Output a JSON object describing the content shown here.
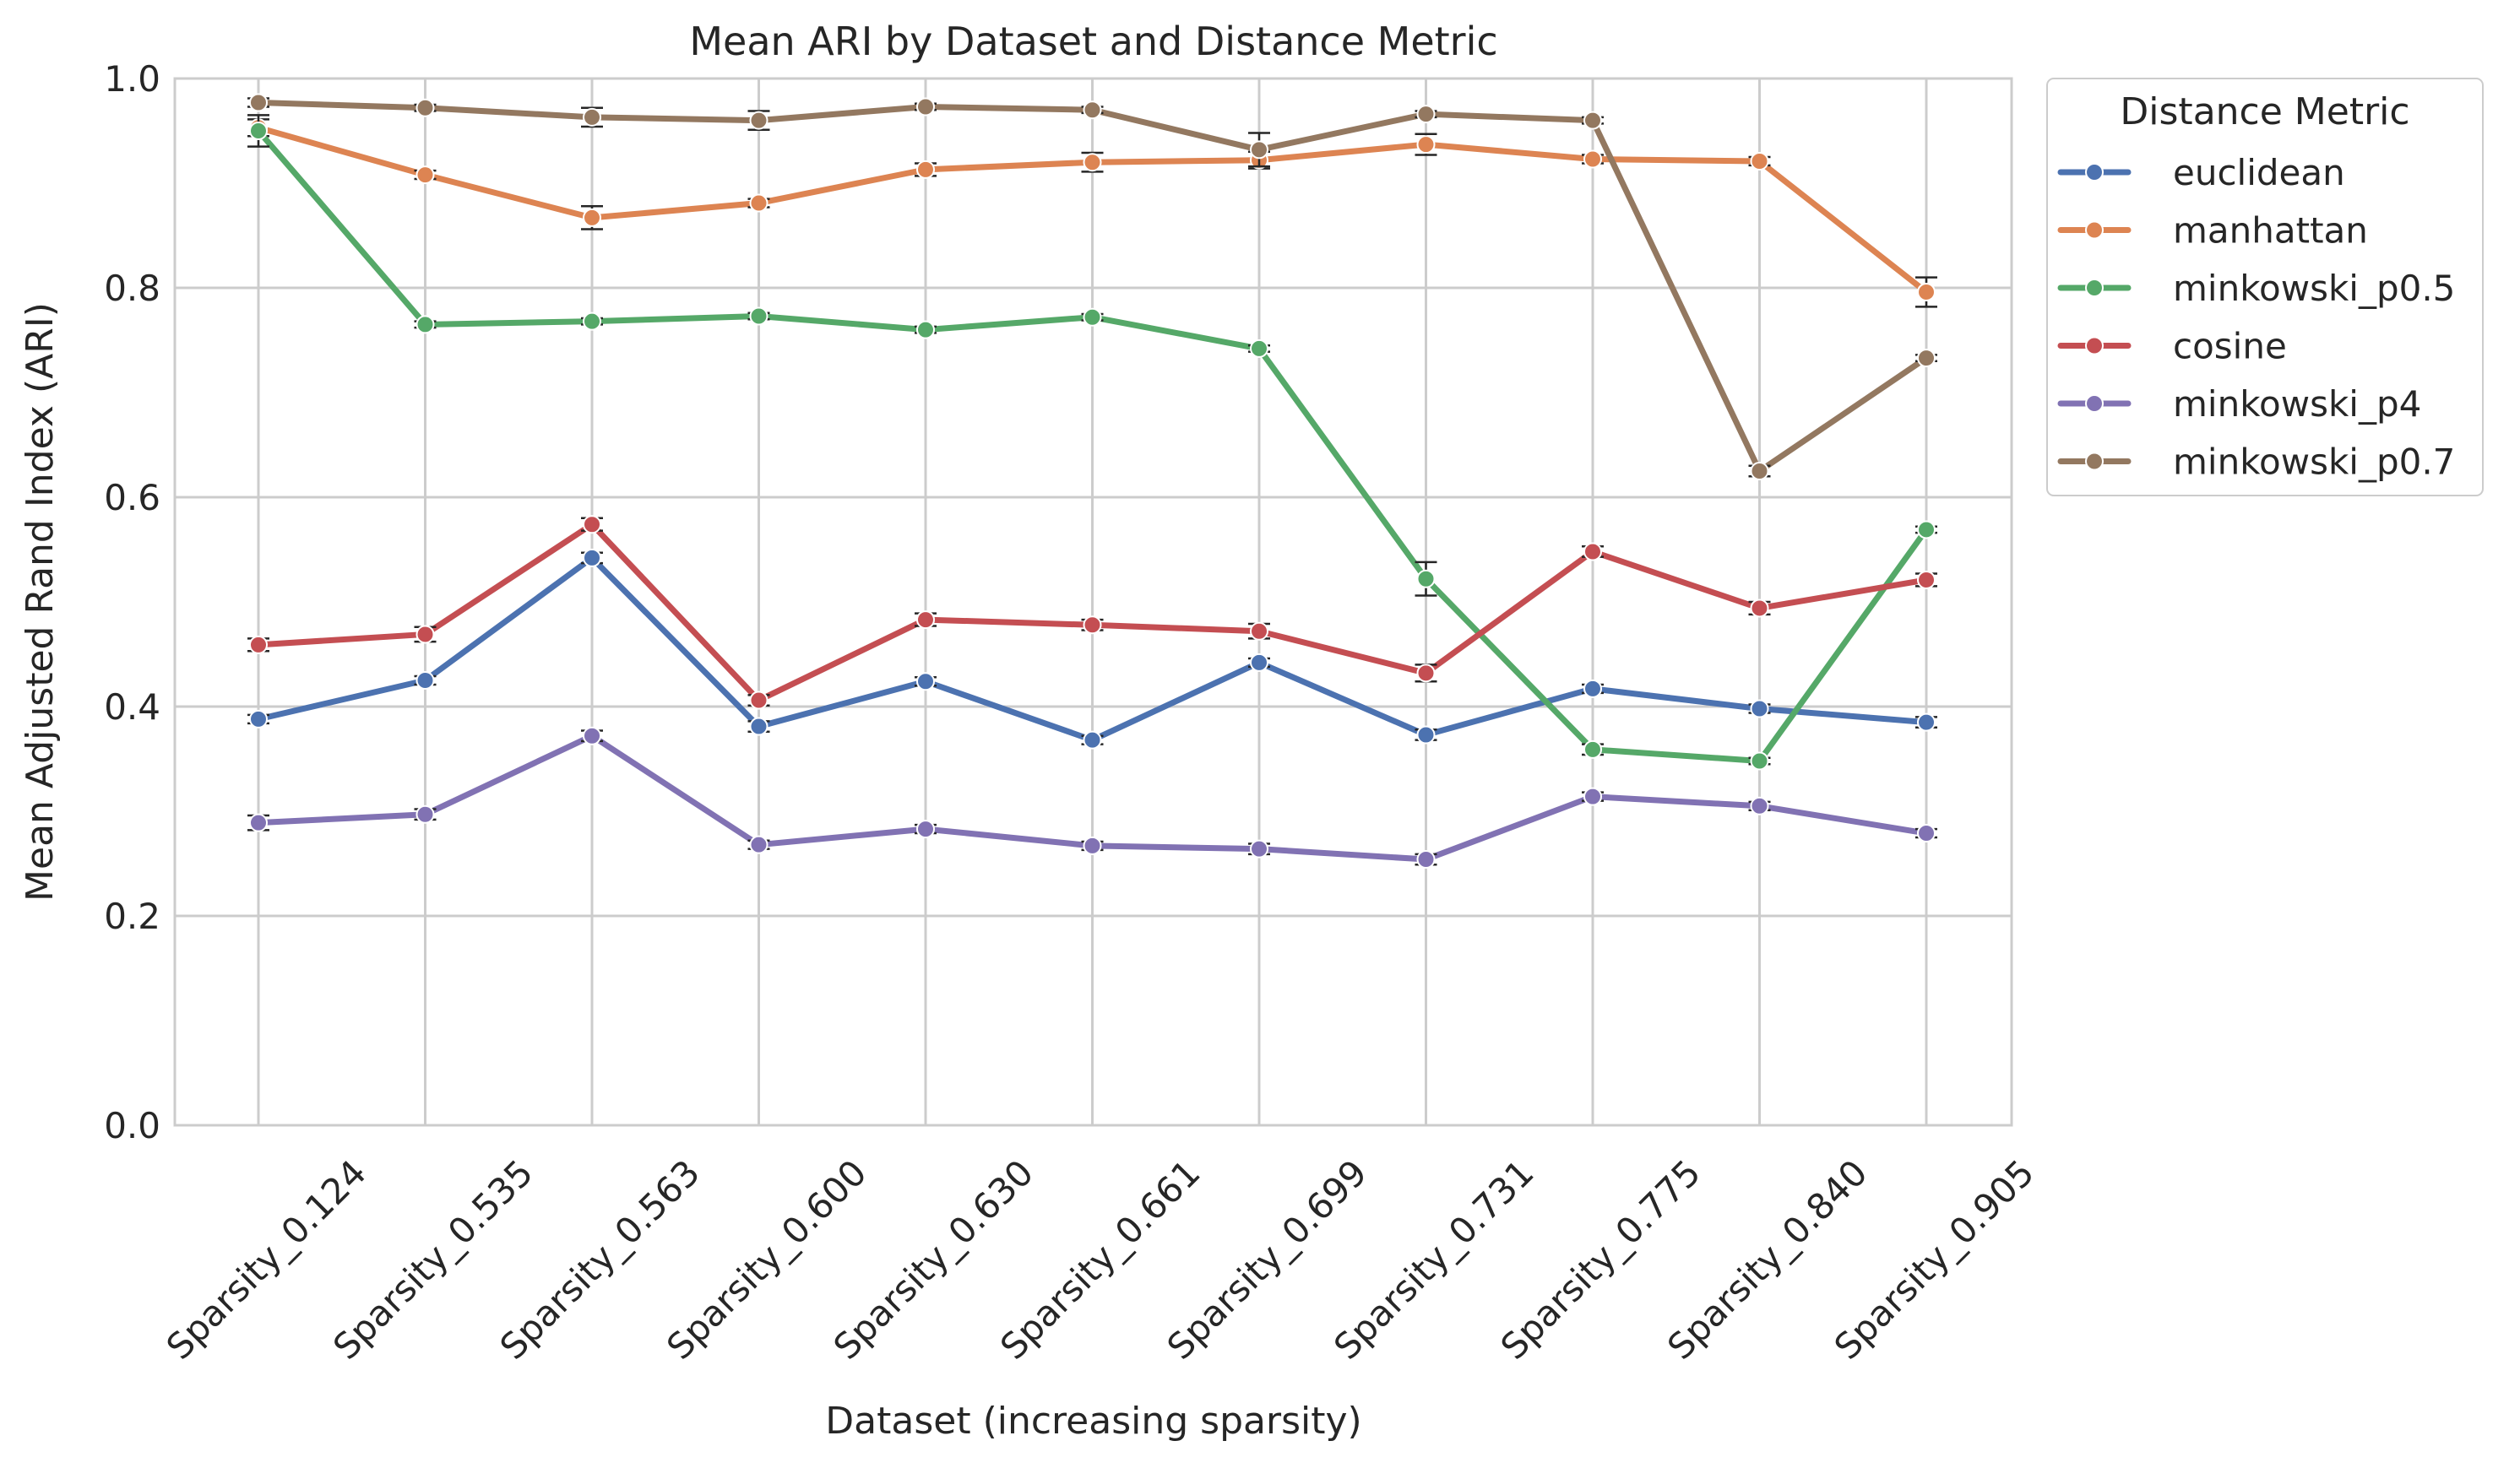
{
  "chart_data": {
    "type": "line",
    "title": "Mean ARI by Dataset and Distance Metric",
    "xlabel": "Dataset (increasing sparsity)",
    "ylabel": "Mean Adjusted Rand Index (ARI)",
    "ylim": [
      0,
      1
    ],
    "yticks": [
      "0.0",
      "0.2",
      "0.4",
      "0.6",
      "0.8",
      "1.0"
    ],
    "grid": true,
    "legend": {
      "title": "Distance Metric",
      "placement": "outside-top-right"
    },
    "categories": [
      "Sparsity_0.124",
      "Sparsity_0.535",
      "Sparsity_0.563",
      "Sparsity_0.600",
      "Sparsity_0.630",
      "Sparsity_0.661",
      "Sparsity_0.699",
      "Sparsity_0.731",
      "Sparsity_0.775",
      "Sparsity_0.840",
      "Sparsity_0.905"
    ],
    "series": [
      {
        "name": "euclidean",
        "color": "#4c72b0",
        "values": [
          0.388,
          0.425,
          0.542,
          0.381,
          0.424,
          0.368,
          0.442,
          0.373,
          0.417,
          0.398,
          0.385
        ],
        "errors": [
          0.004,
          0.004,
          0.005,
          0.005,
          0.004,
          0.004,
          0.004,
          0.005,
          0.004,
          0.004,
          0.005
        ]
      },
      {
        "name": "manhattan",
        "color": "#dd8452",
        "values": [
          0.953,
          0.908,
          0.867,
          0.881,
          0.913,
          0.92,
          0.922,
          0.937,
          0.923,
          0.921,
          0.796
        ],
        "errors": [
          0.008,
          0.004,
          0.011,
          0.004,
          0.006,
          0.009,
          0.008,
          0.01,
          0.004,
          0.004,
          0.014
        ]
      },
      {
        "name": "minkowski_p0.5",
        "color": "#55a868",
        "values": [
          0.95,
          0.765,
          0.768,
          0.773,
          0.76,
          0.772,
          0.742,
          0.522,
          0.359,
          0.348,
          0.569
        ],
        "errors": [
          0.015,
          0.003,
          0.003,
          0.003,
          0.003,
          0.003,
          0.003,
          0.016,
          0.005,
          0.003,
          0.003
        ]
      },
      {
        "name": "cosine",
        "color": "#c44e52",
        "values": [
          0.459,
          0.469,
          0.574,
          0.406,
          0.483,
          0.478,
          0.472,
          0.432,
          0.548,
          0.494,
          0.521
        ],
        "errors": [
          0.006,
          0.007,
          0.006,
          0.005,
          0.006,
          0.005,
          0.007,
          0.008,
          0.005,
          0.006,
          0.006
        ]
      },
      {
        "name": "minkowski_p4",
        "color": "#8172b3",
        "values": [
          0.289,
          0.297,
          0.372,
          0.268,
          0.283,
          0.267,
          0.264,
          0.254,
          0.314,
          0.305,
          0.279
        ],
        "errors": [
          0.007,
          0.005,
          0.005,
          0.004,
          0.004,
          0.004,
          0.005,
          0.005,
          0.004,
          0.004,
          0.004
        ]
      },
      {
        "name": "minkowski_p0.7",
        "color": "#937860",
        "values": [
          0.977,
          0.972,
          0.963,
          0.96,
          0.973,
          0.97,
          0.932,
          0.966,
          0.96,
          0.625,
          0.733
        ],
        "errors": [
          0.004,
          0.003,
          0.009,
          0.009,
          0.003,
          0.003,
          0.016,
          0.003,
          0.003,
          0.005,
          0.003
        ]
      }
    ]
  }
}
